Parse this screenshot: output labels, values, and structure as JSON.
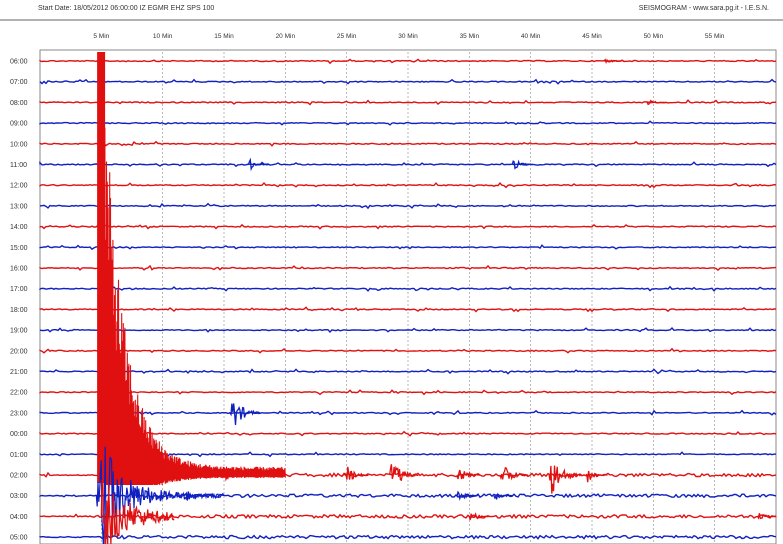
{
  "header": {
    "left": "Start Date: 18/05/2012 06:00:00 IZ EGMR EHZ SPS 100",
    "right": "SEISMOGRAM - www.sara.pg.it - I.E.S.N."
  },
  "chart_data": {
    "type": "line",
    "title": "",
    "xlabel": "",
    "ylabel": "",
    "x_ticks": [
      "5 Min",
      "10 Min",
      "15 Min",
      "20 Min",
      "25 Min",
      "30 Min",
      "35 Min",
      "40 Min",
      "45 Min",
      "50 Min",
      "55 Min"
    ],
    "x_tick_values": [
      5,
      10,
      15,
      20,
      25,
      30,
      35,
      40,
      45,
      50,
      55
    ],
    "xlim": [
      0,
      60
    ],
    "grid": true,
    "trace_colors": [
      "#e01010",
      "#1020c0"
    ],
    "rows": [
      {
        "label": "06:00",
        "color": "#e01010"
      },
      {
        "label": "07:00",
        "color": "#1020c0"
      },
      {
        "label": "08:00",
        "color": "#e01010"
      },
      {
        "label": "09:00",
        "color": "#1020c0"
      },
      {
        "label": "10:00",
        "color": "#e01010"
      },
      {
        "label": "11:00",
        "color": "#1020c0"
      },
      {
        "label": "12:00",
        "color": "#e01010"
      },
      {
        "label": "13:00",
        "color": "#1020c0"
      },
      {
        "label": "14:00",
        "color": "#e01010"
      },
      {
        "label": "15:00",
        "color": "#1020c0"
      },
      {
        "label": "16:00",
        "color": "#e01010"
      },
      {
        "label": "17:00",
        "color": "#1020c0"
      },
      {
        "label": "18:00",
        "color": "#e01010"
      },
      {
        "label": "19:00",
        "color": "#1020c0"
      },
      {
        "label": "20:00",
        "color": "#e01010"
      },
      {
        "label": "21:00",
        "color": "#1020c0"
      },
      {
        "label": "22:00",
        "color": "#e01010"
      },
      {
        "label": "23:00",
        "color": "#1020c0"
      },
      {
        "label": "00:00",
        "color": "#e01010"
      },
      {
        "label": "01:00",
        "color": "#1020c0"
      },
      {
        "label": "02:00",
        "color": "#e01010"
      },
      {
        "label": "03:00",
        "color": "#1020c0"
      },
      {
        "label": "04:00",
        "color": "#e01010"
      },
      {
        "label": "05:00",
        "color": "#1020c0"
      }
    ],
    "events": [
      {
        "name": "mainshock-red",
        "row": 20,
        "minute": 4.9,
        "color": "#e01010",
        "type": "main"
      },
      {
        "name": "mainshock-blue",
        "row": 21,
        "minute": 4.6,
        "color": "#1020c0",
        "type": "main"
      },
      {
        "name": "mainshock-lower-red",
        "row": 22,
        "minute": 5.0,
        "color": "#e01010",
        "type": "main"
      },
      {
        "name": "event-0800-red",
        "row": 2,
        "minute": 49.5,
        "amp": 4,
        "color": "#e01010"
      },
      {
        "name": "event-0600-red",
        "row": 0,
        "minute": 46.0,
        "amp": 4,
        "color": "#e01010"
      },
      {
        "name": "event-1100-blue-a",
        "row": 5,
        "minute": 17.0,
        "amp": 7,
        "color": "#1020c0"
      },
      {
        "name": "event-1100-blue-b",
        "row": 5,
        "minute": 38.5,
        "amp": 8,
        "color": "#1020c0"
      },
      {
        "name": "event-2300-blue",
        "row": 17,
        "minute": 15.5,
        "amp": 24,
        "color": "#1020c0"
      },
      {
        "name": "aftershock-0200-1",
        "row": 20,
        "minute": 14.8,
        "amp": 10,
        "color": "#e01010"
      },
      {
        "name": "aftershock-0200-2",
        "row": 20,
        "minute": 24.8,
        "amp": 14,
        "color": "#e01010"
      },
      {
        "name": "aftershock-0200-3",
        "row": 20,
        "minute": 28.5,
        "amp": 22,
        "color": "#e01010"
      },
      {
        "name": "aftershock-0200-4",
        "row": 20,
        "minute": 34.0,
        "amp": 12,
        "color": "#e01010"
      },
      {
        "name": "aftershock-0200-5",
        "row": 20,
        "minute": 37.5,
        "amp": 20,
        "color": "#e01010"
      },
      {
        "name": "aftershock-0200-6",
        "row": 20,
        "minute": 41.5,
        "amp": 28,
        "color": "#e01010"
      },
      {
        "name": "aftershock-0200-7",
        "row": 20,
        "minute": 44.5,
        "amp": 10,
        "color": "#e01010"
      },
      {
        "name": "aftershock-0300-blue-1",
        "row": 21,
        "minute": 11.8,
        "amp": 8,
        "color": "#1020c0"
      },
      {
        "name": "aftershock-0300-blue-2",
        "row": 21,
        "minute": 34.0,
        "amp": 8,
        "color": "#1020c0"
      },
      {
        "name": "aftershock-0300-blue-3",
        "row": 21,
        "minute": 37.0,
        "amp": 6,
        "color": "#1020c0"
      },
      {
        "name": "aftershock-0400-red",
        "row": 22,
        "minute": 35.0,
        "amp": 8,
        "color": "#e01010"
      },
      {
        "name": "aftershock-0400-red-b",
        "row": 22,
        "minute": 58.5,
        "amp": 6,
        "color": "#e01010"
      }
    ]
  }
}
